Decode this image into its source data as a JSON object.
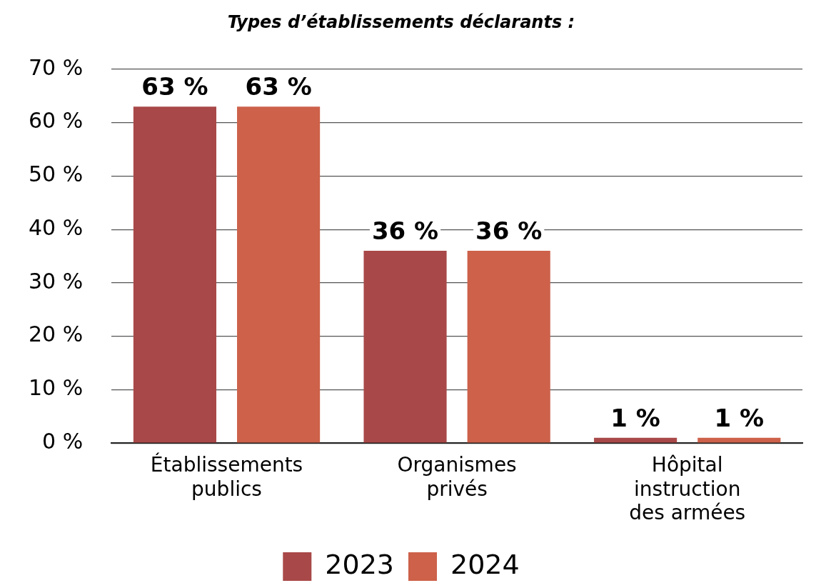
{
  "chart_data": {
    "type": "bar",
    "title": "Types d’établissements déclarants :",
    "categories": [
      "Établissements publics",
      "Organismes privés",
      "Hôpital instruction des armées"
    ],
    "series": [
      {
        "name": "2023",
        "color": "#a94848",
        "values": [
          63,
          36,
          1
        ],
        "value_labels": [
          "63 %",
          "36 %",
          "1 %"
        ]
      },
      {
        "name": "2024",
        "color": "#cd614a",
        "values": [
          63,
          36,
          1
        ],
        "value_labels": [
          "63 %",
          "36 %",
          "1 %"
        ]
      }
    ],
    "ylim": [
      0,
      70
    ],
    "yticks": [
      {
        "value": 0,
        "label": "0 %"
      },
      {
        "value": 10,
        "label": "10 %"
      },
      {
        "value": 20,
        "label": "20 %"
      },
      {
        "value": 30,
        "label": "30 %"
      },
      {
        "value": 40,
        "label": "40 %"
      },
      {
        "value": 50,
        "label": "50 %"
      },
      {
        "value": 60,
        "label": "60 %"
      },
      {
        "value": 70,
        "label": "70 %"
      }
    ],
    "grid": "y",
    "legend": "bottom"
  }
}
